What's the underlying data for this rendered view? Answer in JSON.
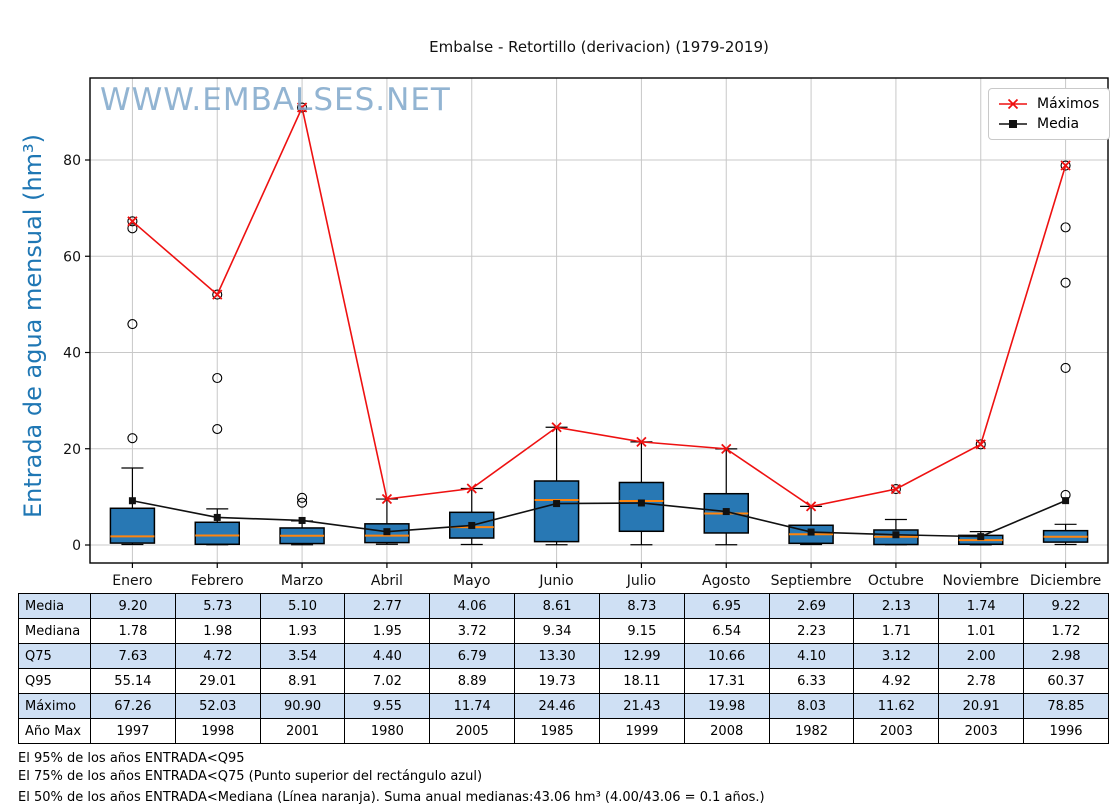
{
  "title": "Embalse - Retortillo (derivacion) (1979-2019)",
  "watermark": "WWW.EMBALSES.NET",
  "legend": {
    "maximos": "Máximos",
    "media": "Media"
  },
  "y_axis": {
    "label": "Entrada de agua mensual (hm³)",
    "ticks": [
      0,
      20,
      40,
      60,
      80
    ]
  },
  "chart_data": {
    "type": "box+line",
    "categories": [
      "Enero",
      "Febrero",
      "Marzo",
      "Abril",
      "Mayo",
      "Junio",
      "Julio",
      "Agosto",
      "Septiembre",
      "Octubre",
      "Noviembre",
      "Diciembre"
    ],
    "series": [
      {
        "name": "Máximos",
        "marker": "x",
        "values": [
          67.26,
          52.03,
          90.9,
          9.55,
          11.74,
          24.46,
          21.43,
          19.98,
          8.03,
          11.62,
          20.91,
          78.85
        ]
      },
      {
        "name": "Media",
        "marker": "square",
        "values": [
          9.2,
          5.73,
          5.1,
          2.77,
          4.06,
          8.61,
          8.73,
          6.95,
          2.69,
          2.13,
          1.74,
          9.22
        ]
      }
    ],
    "box": {
      "median": [
        1.78,
        1.98,
        1.93,
        1.95,
        3.72,
        9.34,
        9.15,
        6.54,
        2.23,
        1.71,
        1.01,
        1.72
      ],
      "q75": [
        7.63,
        4.72,
        3.54,
        4.4,
        6.79,
        13.3,
        12.99,
        10.66,
        4.1,
        3.12,
        2.0,
        2.98
      ],
      "q25_est": [
        0.4,
        0.15,
        0.3,
        0.5,
        1.45,
        0.7,
        2.85,
        2.5,
        0.35,
        0.1,
        0.15,
        0.6
      ],
      "whisker_hi_est": [
        16.0,
        7.5,
        5.0,
        9.55,
        11.74,
        24.46,
        21.43,
        19.98,
        8.03,
        5.3,
        2.78,
        4.3
      ],
      "whisker_lo_est": [
        0.1,
        0.05,
        0.05,
        0.15,
        0.1,
        0.05,
        0.05,
        0.05,
        0.1,
        0.05,
        0.03,
        0.1
      ],
      "outliers": [
        [
          22.2,
          45.9,
          65.8,
          67.26
        ],
        [
          24.1,
          34.7,
          52.03
        ],
        [
          8.8,
          9.8,
          90.9
        ],
        [],
        [],
        [],
        [],
        [],
        [],
        [
          11.62
        ],
        [
          20.91
        ],
        [
          10.4,
          36.8,
          54.5,
          66.0,
          78.85
        ]
      ]
    },
    "ylim_est": [
      -3.7,
      97.0
    ],
    "grid": true,
    "legend_position": "upper right"
  },
  "table": {
    "row_labels": [
      "Media",
      "Mediana",
      "Q75",
      "Q95",
      "Máximo",
      "Año Max"
    ],
    "rows": [
      [
        "9.20",
        "5.73",
        "5.10",
        "2.77",
        "4.06",
        "8.61",
        "8.73",
        "6.95",
        "2.69",
        "2.13",
        "1.74",
        "9.22"
      ],
      [
        "1.78",
        "1.98",
        "1.93",
        "1.95",
        "3.72",
        "9.34",
        "9.15",
        "6.54",
        "2.23",
        "1.71",
        "1.01",
        "1.72"
      ],
      [
        "7.63",
        "4.72",
        "3.54",
        "4.40",
        "6.79",
        "13.30",
        "12.99",
        "10.66",
        "4.10",
        "3.12",
        "2.00",
        "2.98"
      ],
      [
        "55.14",
        "29.01",
        "8.91",
        "7.02",
        "8.89",
        "19.73",
        "18.11",
        "17.31",
        "6.33",
        "4.92",
        "2.78",
        "60.37"
      ],
      [
        "67.26",
        "52.03",
        "90.90",
        "9.55",
        "11.74",
        "24.46",
        "21.43",
        "19.98",
        "8.03",
        "11.62",
        "20.91",
        "78.85"
      ],
      [
        "1997",
        "1998",
        "2001",
        "1980",
        "2005",
        "1985",
        "1999",
        "2008",
        "1982",
        "2003",
        "2003",
        "1996"
      ]
    ],
    "highlight_rows": [
      0,
      2,
      4
    ]
  },
  "footnotes": [
    "El 95% de los años ENTRADA<Q95",
    "El 75% de los años ENTRADA<Q75 (Punto superior del rectángulo azul)",
    "El 50% de los años ENTRADA<Mediana (Línea naranja). Suma anual medianas:43.06 hm³ (4.00/43.06 = 0.1 años.)"
  ],
  "colors": {
    "box_fill": "#2878b4",
    "box_edge": "#000000",
    "median_line": "#ff850e",
    "maximos_line": "#ee1111",
    "media_line": "#111111",
    "grid": "#c8c8c8",
    "spine": "#000000",
    "watermark": "#7fa7cb",
    "ylabel": "#1f77b4",
    "table_highlight": "#cfe0f4"
  }
}
